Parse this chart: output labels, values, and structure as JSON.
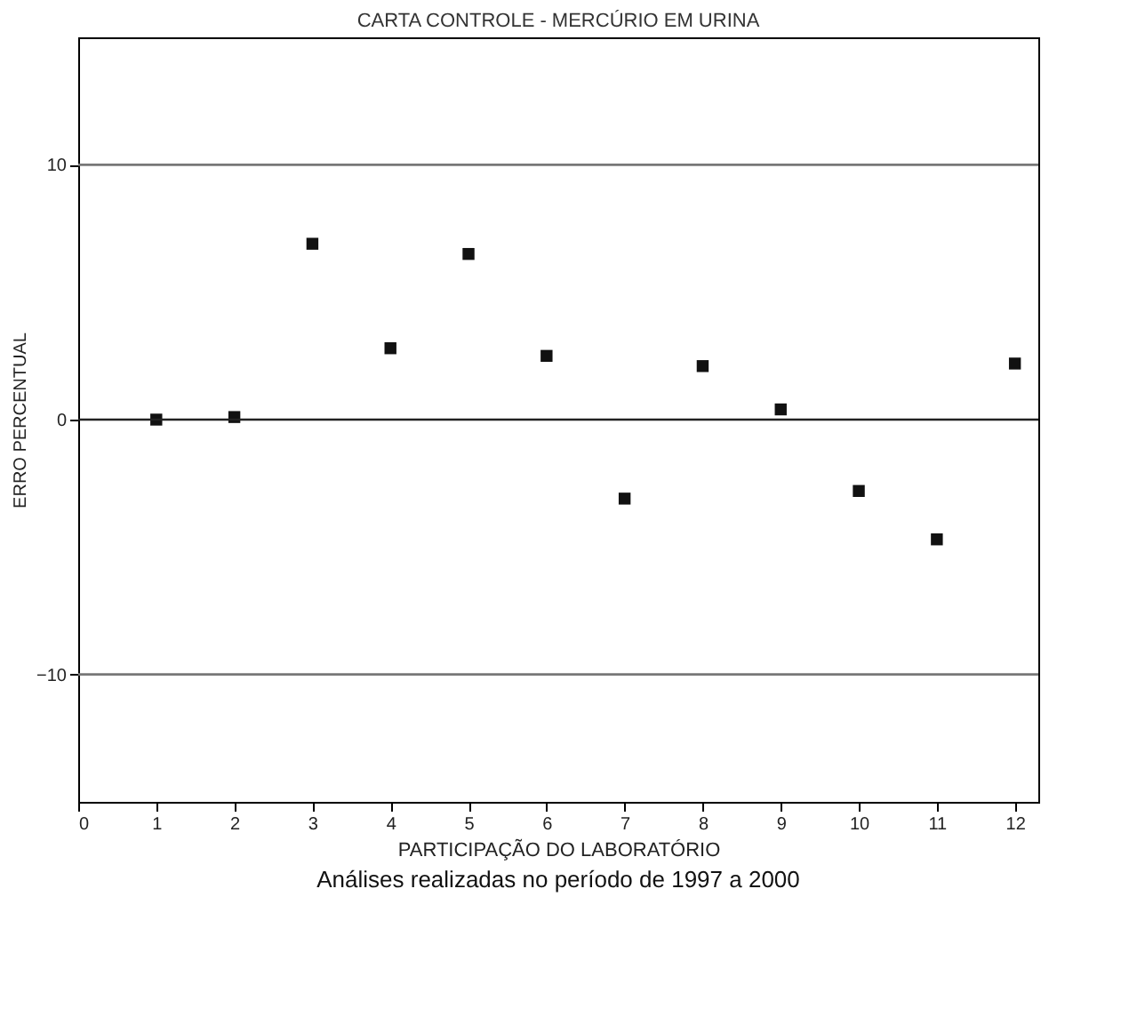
{
  "chart_data": {
    "type": "scatter",
    "title": "CARTA CONTROLE - MERCÚRIO EM URINA",
    "xlabel": "PARTICIPAÇÃO DO LABORATÓRIO",
    "ylabel": "ERRO PERCENTUAL",
    "annotations": [
      "Análises realizadas no período de 1997 a 2000"
    ],
    "x": [
      1,
      2,
      3,
      4,
      5,
      6,
      7,
      8,
      9,
      10,
      11,
      12
    ],
    "series": [
      {
        "color": "#111111",
        "values": [
          0,
          0.1,
          6.9,
          2.8,
          6.5,
          2.5,
          -3.1,
          2.1,
          0.4,
          -2.8,
          -4.7,
          2.2
        ]
      }
    ],
    "marker": "square",
    "xlim": [
      0,
      12.3
    ],
    "xticks": [
      0,
      1,
      2,
      3,
      4,
      5,
      6,
      7,
      8,
      9,
      10,
      11,
      12
    ],
    "ylim": [
      -15,
      15
    ],
    "yticks": [
      -10,
      0,
      10
    ],
    "ref_lines": [
      {
        "axis": "y",
        "value": 10,
        "color": "#777777"
      },
      {
        "axis": "y",
        "value": 0,
        "color": "#222222"
      },
      {
        "axis": "y",
        "value": -10,
        "color": "#777777"
      }
    ],
    "grid": false
  }
}
